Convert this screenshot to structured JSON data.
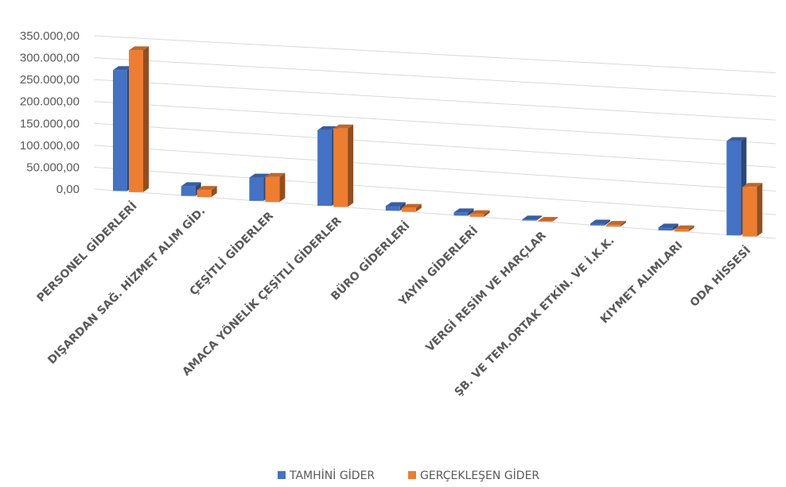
{
  "chart_data": {
    "type": "bar",
    "categories": [
      "PERSONEL GİDERLERİ",
      "DIŞARDAN SAĞ. HİZMET ALIM GİD.",
      "ÇEŞİTLİ GİDERLER",
      "AMACA YÖNELİK ÇEŞİTLİ GİDERLER",
      "BÜRO GİDERLERİ",
      "YAYIN GİDERLERİ",
      "VERGİ RESİM VE HARÇLAR",
      "ŞB. VE TEM.ORTAK ETKİN. VE İ.K.K.",
      "KIYMET ALIMLARI",
      "ODA HİSSESİ"
    ],
    "series": [
      {
        "name": "TAMHİNİ GİDER",
        "color": "#4472c4",
        "values": [
          275000,
          22000,
          52000,
          168000,
          10000,
          7000,
          2000,
          4000,
          6000,
          200000
        ]
      },
      {
        "name": "GERÇEKLEŞEN GİDER",
        "color": "#ed7d31",
        "values": [
          322000,
          16000,
          56000,
          174000,
          8500,
          5500,
          1500,
          3500,
          4500,
          105000
        ]
      }
    ],
    "yticks": [
      "0,00",
      "50.000,00",
      "100.000,00",
      "150.000,00",
      "200.000,00",
      "250.000,00",
      "300.000,00",
      "350.000,00"
    ],
    "ylim": [
      0,
      350000
    ],
    "grid": true,
    "legend_position": "bottom"
  }
}
